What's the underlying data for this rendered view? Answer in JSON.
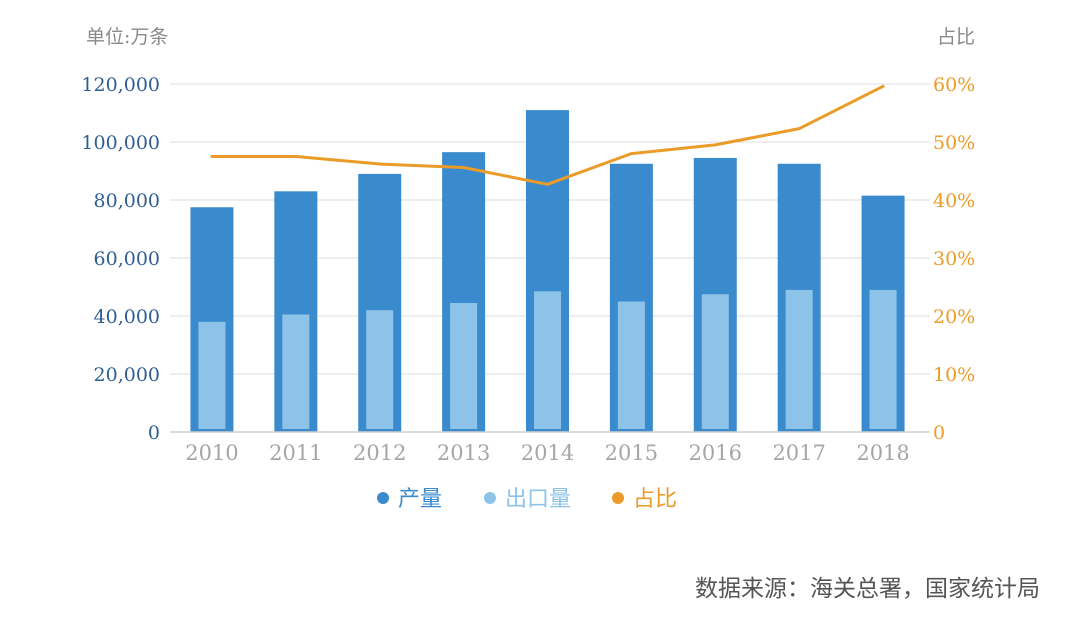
{
  "chart_data": {
    "type": "bar",
    "categories": [
      "2010",
      "2011",
      "2012",
      "2013",
      "2014",
      "2015",
      "2016",
      "2017",
      "2018"
    ],
    "series": [
      {
        "name": "产量",
        "type": "bar",
        "axis": "left",
        "color": "#3a8bcd",
        "values": [
          77500,
          83000,
          89000,
          96500,
          111000,
          92500,
          94500,
          92500,
          81500
        ]
      },
      {
        "name": "出口量",
        "type": "bar",
        "axis": "left",
        "color": "#8ec3e9",
        "values": [
          38000,
          40500,
          42000,
          44500,
          48500,
          45000,
          47500,
          49000,
          49000
        ]
      },
      {
        "name": "占比",
        "type": "line",
        "axis": "right",
        "color": "#eb9b28",
        "values": [
          47.5,
          47.5,
          46.2,
          45.6,
          42.7,
          48.0,
          49.5,
          52.3,
          59.6
        ]
      }
    ],
    "y_left": {
      "label": "单位:万条",
      "ylim": [
        0,
        120000
      ],
      "ticks": [
        "0",
        "20,000",
        "40,000",
        "60,000",
        "80,000",
        "100,000",
        "120,000"
      ],
      "tick_color": "#2e5f93"
    },
    "y_right": {
      "label": "占比",
      "ylim": [
        0,
        60
      ],
      "ticks": [
        "0",
        "10%",
        "20%",
        "30%",
        "40%",
        "50%",
        "60%"
      ],
      "tick_color": "#eb9b28"
    },
    "grid": true,
    "legend": "bottom-center",
    "source": "数据来源：海关总署，国家统计局"
  }
}
